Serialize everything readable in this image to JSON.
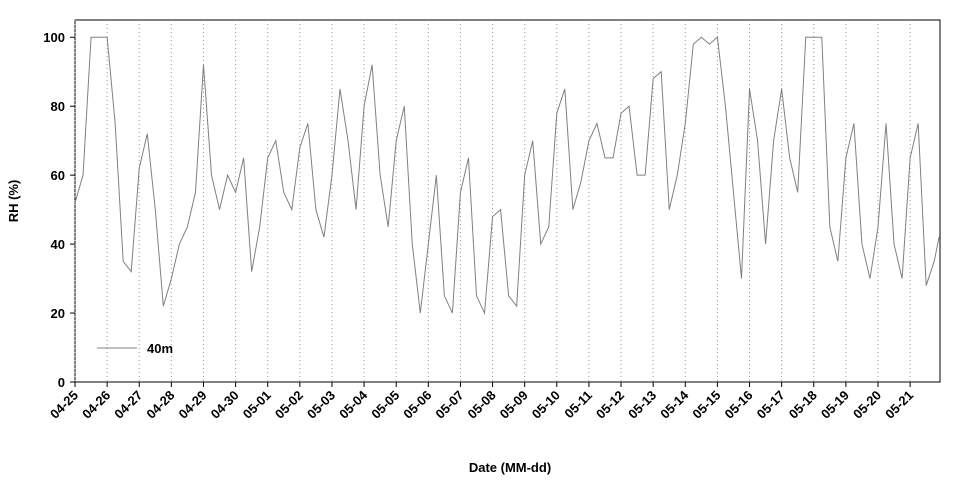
{
  "chart_data": {
    "type": "line",
    "xlabel": "Date (MM-dd)",
    "ylabel": "RH (%)",
    "x": [
      0,
      0.25,
      0.5,
      0.75,
      1,
      1.25,
      1.5,
      1.75,
      2,
      2.25,
      2.5,
      2.75,
      3,
      3.25,
      3.5,
      3.75,
      4,
      4.25,
      4.5,
      4.75,
      5,
      5.25,
      5.5,
      5.75,
      6,
      6.25,
      6.5,
      6.75,
      7,
      7.25,
      7.5,
      7.75,
      8,
      8.25,
      8.5,
      8.75,
      9,
      9.25,
      9.5,
      9.75,
      10,
      10.25,
      10.5,
      10.75,
      11,
      11.25,
      11.5,
      11.75,
      12,
      12.25,
      12.5,
      12.75,
      13,
      13.25,
      13.5,
      13.75,
      14,
      14.25,
      14.5,
      14.75,
      15,
      15.25,
      15.5,
      15.75,
      16,
      16.25,
      16.5,
      16.75,
      17,
      17.25,
      17.5,
      17.75,
      18,
      18.25,
      18.5,
      18.75,
      19,
      19.25,
      19.5,
      19.75,
      20,
      20.25,
      20.5,
      20.75,
      21,
      21.25,
      21.5,
      21.75,
      22,
      22.25,
      22.5,
      22.75,
      23,
      23.25,
      23.5,
      23.75,
      24,
      24.25,
      24.5,
      24.75,
      25,
      25.25,
      25.5,
      25.75,
      26,
      26.25,
      26.5,
      26.75,
      26.9
    ],
    "series": [
      {
        "name": "40m",
        "color": "#808080",
        "values": [
          52,
          60,
          100,
          100,
          100,
          75,
          35,
          32,
          62,
          72,
          50,
          22,
          30,
          40,
          45,
          55,
          92,
          60,
          50,
          60,
          55,
          65,
          32,
          45,
          65,
          70,
          55,
          50,
          68,
          75,
          50,
          42,
          60,
          85,
          70,
          50,
          80,
          92,
          60,
          45,
          70,
          80,
          40,
          20,
          40,
          60,
          25,
          20,
          55,
          65,
          25,
          20,
          48,
          50,
          25,
          22,
          60,
          70,
          40,
          45,
          78,
          85,
          50,
          58,
          70,
          75,
          65,
          65,
          78,
          80,
          60,
          60,
          88,
          90,
          50,
          60,
          75,
          98,
          100,
          98,
          100,
          80,
          55,
          30,
          85,
          70,
          40,
          70,
          85,
          65,
          55,
          100,
          100,
          100,
          45,
          35,
          65,
          75,
          40,
          30,
          45,
          75,
          40,
          30,
          65,
          75,
          28,
          35,
          42
        ]
      }
    ],
    "xlim": [
      0,
      26.93
    ],
    "xticks": [
      {
        "value": 0,
        "label": "04-25"
      },
      {
        "value": 1,
        "label": "04-26"
      },
      {
        "value": 2,
        "label": "04-27"
      },
      {
        "value": 3,
        "label": "04-28"
      },
      {
        "value": 4,
        "label": "04-29"
      },
      {
        "value": 5,
        "label": "04-30"
      },
      {
        "value": 6,
        "label": "05-01"
      },
      {
        "value": 7,
        "label": "05-02"
      },
      {
        "value": 8,
        "label": "05-03"
      },
      {
        "value": 9,
        "label": "05-04"
      },
      {
        "value": 10,
        "label": "05-05"
      },
      {
        "value": 11,
        "label": "05-06"
      },
      {
        "value": 12,
        "label": "05-07"
      },
      {
        "value": 13,
        "label": "05-08"
      },
      {
        "value": 14,
        "label": "05-09"
      },
      {
        "value": 15,
        "label": "05-10"
      },
      {
        "value": 16,
        "label": "05-11"
      },
      {
        "value": 17,
        "label": "05-12"
      },
      {
        "value": 18,
        "label": "05-13"
      },
      {
        "value": 19,
        "label": "05-14"
      },
      {
        "value": 20,
        "label": "05-15"
      },
      {
        "value": 21,
        "label": "05-16"
      },
      {
        "value": 22,
        "label": "05-17"
      },
      {
        "value": 23,
        "label": "05-18"
      },
      {
        "value": 24,
        "label": "05-19"
      },
      {
        "value": 25,
        "label": "05-20"
      },
      {
        "value": 26,
        "label": "05-21"
      }
    ],
    "ylim": [
      0,
      105
    ],
    "yticks": [
      0,
      20,
      40,
      60,
      80,
      100
    ],
    "grid": "x",
    "legend": "lower left"
  }
}
